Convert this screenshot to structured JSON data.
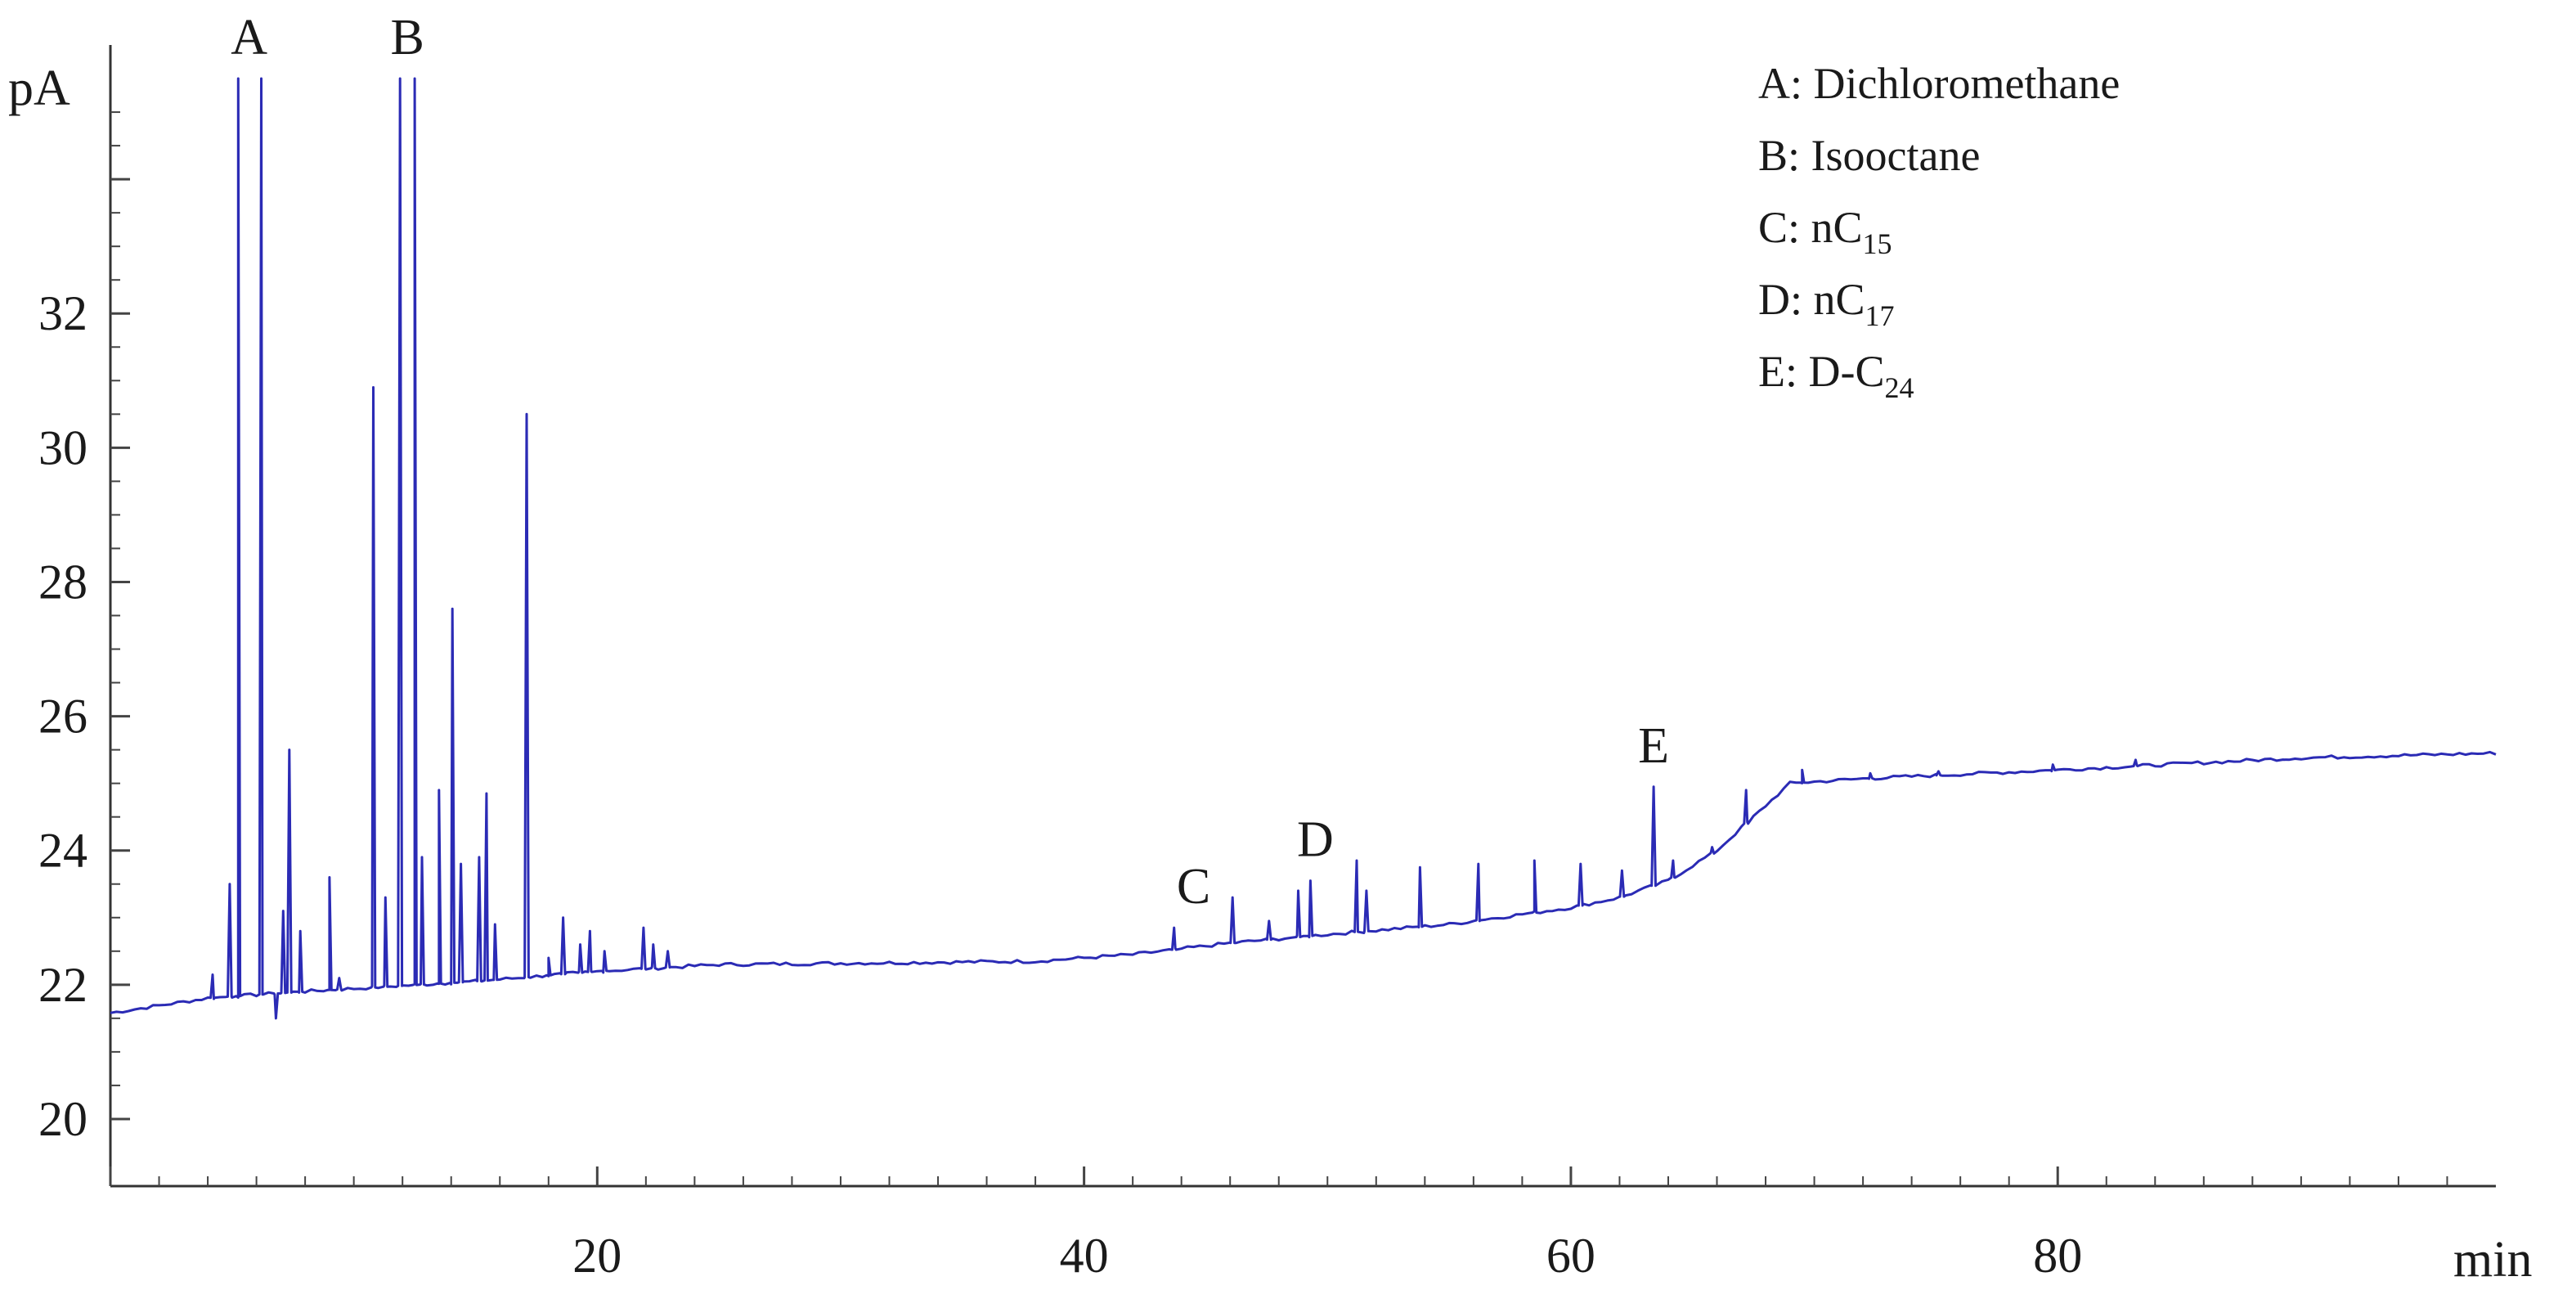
{
  "chart_data": {
    "type": "line",
    "title": "",
    "xlabel": "min",
    "ylabel": "pA",
    "xlim": [
      0,
      98
    ],
    "ylim": [
      19,
      36
    ],
    "x_ticks": [
      20,
      40,
      60,
      80
    ],
    "y_ticks": [
      20,
      22,
      24,
      26,
      28,
      30,
      32
    ],
    "grid": false,
    "line_color": "#2b2bb5",
    "series": [
      {
        "baseline": [
          [
            0,
            21.58
          ],
          [
            4,
            21.8
          ],
          [
            8,
            21.9
          ],
          [
            15,
            22.05
          ],
          [
            20,
            22.2
          ],
          [
            25,
            22.3
          ],
          [
            30,
            22.32
          ],
          [
            38,
            22.35
          ],
          [
            42,
            22.45
          ],
          [
            46,
            22.62
          ],
          [
            50,
            22.75
          ],
          [
            55,
            22.9
          ],
          [
            58,
            23.05
          ],
          [
            60,
            23.15
          ],
          [
            62,
            23.3
          ],
          [
            64,
            23.55
          ],
          [
            66,
            24.0
          ],
          [
            67.5,
            24.5
          ],
          [
            69,
            25.0
          ],
          [
            72,
            25.07
          ],
          [
            80,
            25.2
          ],
          [
            90,
            25.38
          ],
          [
            98,
            25.45
          ]
        ],
        "peaks": [
          [
            4.2,
            22.15
          ],
          [
            4.9,
            23.5
          ],
          [
            5.25,
            35.5
          ],
          [
            6.2,
            35.5
          ],
          [
            6.8,
            21.5
          ],
          [
            7.1,
            23.1
          ],
          [
            7.35,
            25.5
          ],
          [
            7.8,
            22.8
          ],
          [
            9.0,
            23.6
          ],
          [
            9.4,
            22.1
          ],
          [
            10.8,
            30.9
          ],
          [
            11.3,
            23.3
          ],
          [
            11.9,
            35.5
          ],
          [
            12.5,
            35.5
          ],
          [
            12.8,
            23.9
          ],
          [
            13.5,
            24.9
          ],
          [
            14.05,
            27.6
          ],
          [
            14.4,
            23.8
          ],
          [
            15.15,
            23.9
          ],
          [
            15.45,
            24.85
          ],
          [
            15.8,
            22.9
          ],
          [
            17.1,
            30.5
          ],
          [
            18.0,
            22.4
          ],
          [
            18.6,
            23.0
          ],
          [
            19.3,
            22.6
          ],
          [
            19.7,
            22.8
          ],
          [
            20.3,
            22.5
          ],
          [
            21.9,
            22.85
          ],
          [
            22.3,
            22.6
          ],
          [
            22.9,
            22.5
          ],
          [
            43.7,
            22.85
          ],
          [
            46.1,
            23.3
          ],
          [
            47.6,
            22.95
          ],
          [
            48.8,
            23.4
          ],
          [
            49.3,
            23.55
          ],
          [
            51.2,
            23.85
          ],
          [
            51.6,
            23.4
          ],
          [
            53.8,
            23.75
          ],
          [
            56.2,
            23.8
          ],
          [
            58.5,
            23.85
          ],
          [
            60.4,
            23.8
          ],
          [
            62.1,
            23.7
          ],
          [
            63.4,
            24.95
          ],
          [
            64.2,
            23.85
          ],
          [
            65.8,
            24.05
          ],
          [
            67.2,
            24.9
          ],
          [
            69.5,
            25.2
          ],
          [
            72.3,
            25.15
          ],
          [
            75.1,
            25.18
          ],
          [
            79.8,
            25.28
          ],
          [
            83.2,
            25.35
          ]
        ]
      }
    ],
    "peak_labels": [
      {
        "label": "A",
        "x": 5.7
      },
      {
        "label": "B",
        "x": 12.2
      },
      {
        "label": "C",
        "x": 44.5
      },
      {
        "label": "D",
        "x": 49.5
      },
      {
        "label": "E",
        "x": 63.4
      }
    ],
    "legend": {
      "placement": "top-right",
      "entries": [
        {
          "text": "A: Dichloromethane",
          "sub": ""
        },
        {
          "text": "B: Isooctane",
          "sub": ""
        },
        {
          "text": "C: nC",
          "sub": "15"
        },
        {
          "text": "D: nC",
          "sub": "17"
        },
        {
          "text": "E: D-C",
          "sub": "24"
        }
      ]
    }
  }
}
